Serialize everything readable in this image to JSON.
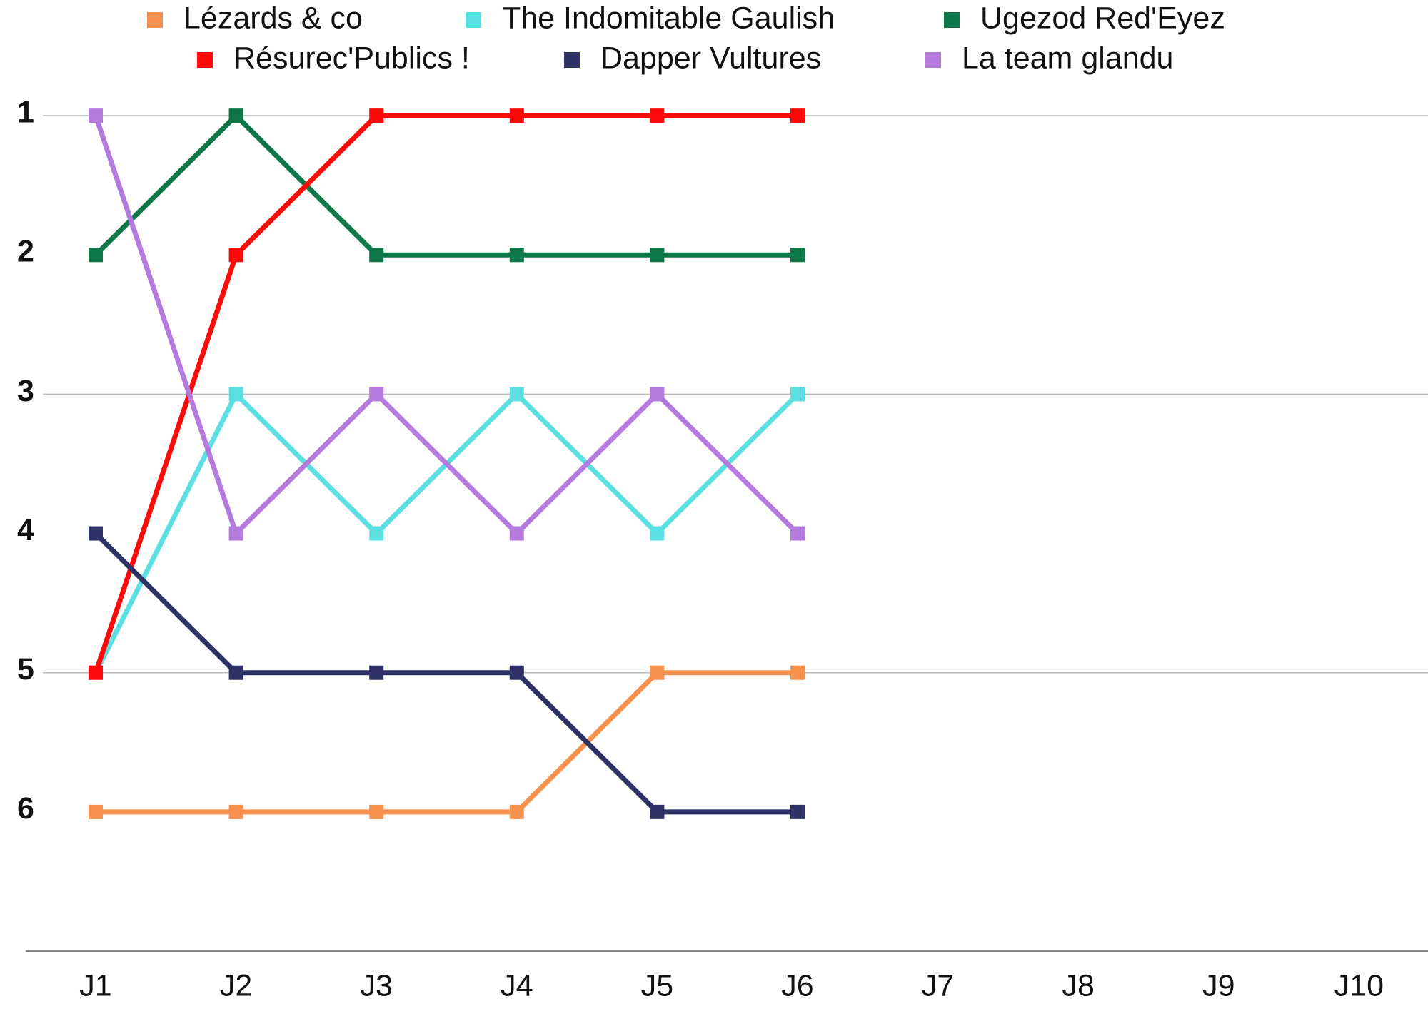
{
  "chart_data": {
    "type": "line",
    "categories": [
      "J1",
      "J2",
      "J3",
      "J4",
      "J5",
      "J6",
      "J7",
      "J8",
      "J9",
      "J10"
    ],
    "series": [
      {
        "name": "Lézards & co",
        "color": "#f7914d",
        "values": [
          6,
          6,
          6,
          6,
          5,
          5,
          null,
          null,
          null,
          null
        ]
      },
      {
        "name": "The Indomitable Gaulish",
        "color": "#5cdfe3",
        "values": [
          5,
          3,
          4,
          3,
          4,
          3,
          null,
          null,
          null,
          null
        ]
      },
      {
        "name": "Ugezod Red'Eyez",
        "color": "#0e7747",
        "values": [
          2,
          1,
          2,
          2,
          2,
          2,
          null,
          null,
          null,
          null
        ]
      },
      {
        "name": "Résurec'Publics !",
        "color": "#ff0a0a",
        "values": [
          5,
          2,
          1,
          1,
          1,
          1,
          null,
          null,
          null,
          null
        ]
      },
      {
        "name": "Dapper Vultures",
        "color": "#2e3166",
        "values": [
          4,
          5,
          5,
          5,
          6,
          6,
          null,
          null,
          null,
          null
        ]
      },
      {
        "name": "La team glandu",
        "color": "#b57ade",
        "values": [
          1,
          4,
          3,
          4,
          3,
          4,
          null,
          null,
          null,
          null
        ]
      }
    ],
    "ylim": [
      7,
      0
    ],
    "yticks": [
      1,
      2,
      3,
      4,
      5,
      6
    ],
    "grid_ticks": [
      1,
      3,
      5
    ],
    "grid": true,
    "legend": "top"
  }
}
